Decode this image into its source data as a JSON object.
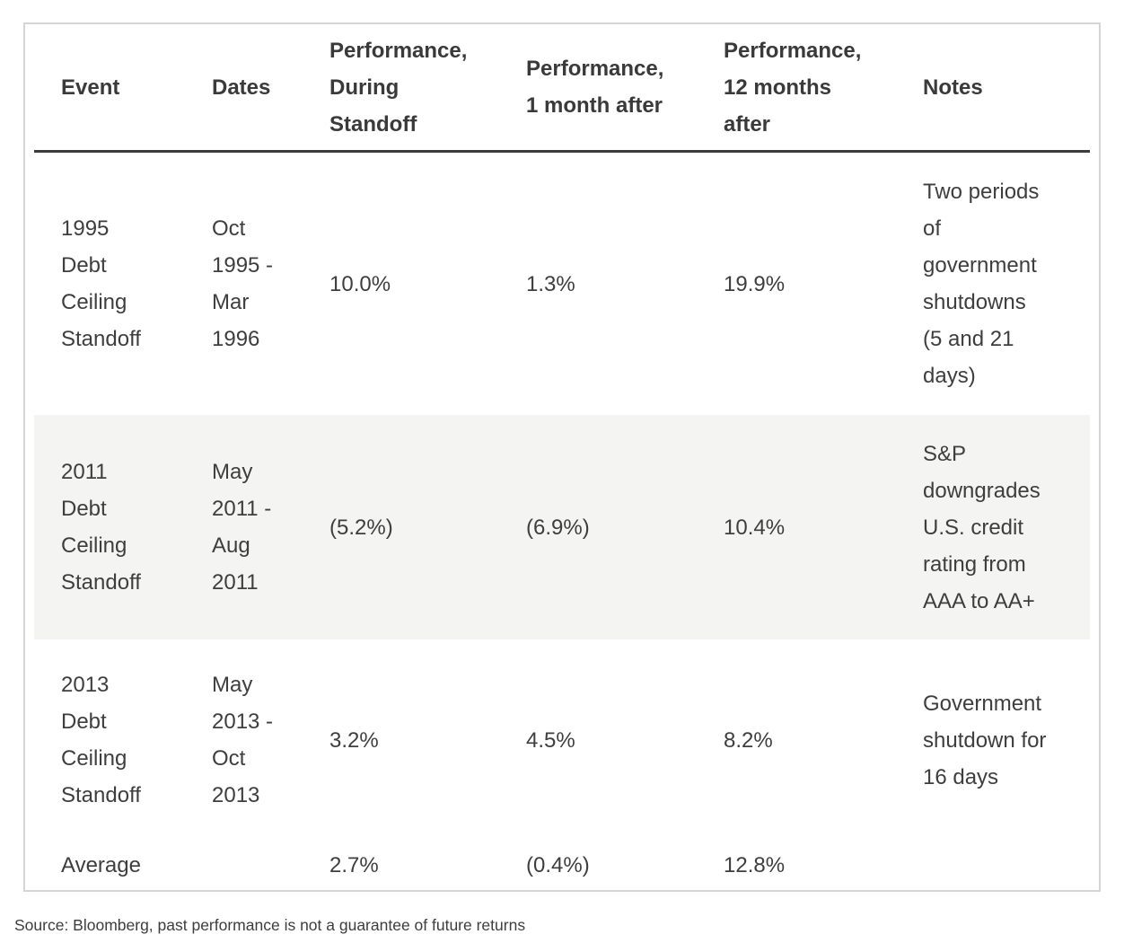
{
  "chart_data": {
    "type": "table",
    "title": "",
    "columns": [
      "Event",
      "Dates",
      "Performance, During Standoff",
      "Performance, 1 month after",
      "Performance, 12 months after",
      "Notes"
    ],
    "rows": [
      [
        "1995 Debt Ceiling Standoff",
        "Oct 1995 - Mar 1996",
        "10.0%",
        "1.3%",
        "19.9%",
        "Two periods of government shutdowns (5 and 21 days)"
      ],
      [
        "2011 Debt Ceiling Standoff",
        "May 2011 - Aug 2011",
        "(5.2%)",
        "(6.9%)",
        "10.4%",
        "S&P downgrades U.S. credit rating from AAA to AA+"
      ],
      [
        "2013 Debt Ceiling Standoff",
        "May 2013 - Oct 2013",
        "3.2%",
        "4.5%",
        "8.2%",
        "Government shutdown for 16 days"
      ],
      [
        "Average",
        "",
        "2.7%",
        "(0.4%)",
        "12.8%",
        ""
      ]
    ],
    "source": "Source: Bloomberg, past performance is not a guarantee of future returns"
  },
  "table": {
    "columns": [
      {
        "label": "Event"
      },
      {
        "label": "Dates"
      },
      {
        "label": "Performance,\nDuring\nStandoff"
      },
      {
        "label": "Performance,\n1 month after"
      },
      {
        "label": "Performance,\n12 months\nafter"
      },
      {
        "label": "Notes"
      }
    ],
    "rows": [
      {
        "event": "1995\nDebt\nCeiling\nStandoff",
        "dates": "Oct\n1995 -\nMar\n1996",
        "perf_during": "10.0%",
        "perf_1mo": "1.3%",
        "perf_12mo": "19.9%",
        "notes": "Two periods\nof\ngovernment\nshutdowns\n(5 and 21\ndays)"
      },
      {
        "event": "2011\nDebt\nCeiling\nStandoff",
        "dates": "May\n2011 -\nAug\n2011",
        "perf_during": "(5.2%)",
        "perf_1mo": "(6.9%)",
        "perf_12mo": "10.4%",
        "notes": "S&P\ndowngrades\nU.S. credit\nrating from\nAAA to AA+"
      },
      {
        "event": "2013\nDebt\nCeiling\nStandoff",
        "dates": "May\n2013 -\nOct\n2013",
        "perf_during": "3.2%",
        "perf_1mo": "4.5%",
        "perf_12mo": "8.2%",
        "notes": "Government\nshutdown for\n16 days"
      },
      {
        "event": "Average",
        "dates": "",
        "perf_during": "2.7%",
        "perf_1mo": "(0.4%)",
        "perf_12mo": "12.8%",
        "notes": ""
      }
    ]
  },
  "footer": {
    "source": "Source: Bloomberg, past performance is not a guarantee of future returns"
  },
  "colors": {
    "text": "#3e3e3e",
    "card_border": "#d5d5d5",
    "header_rule": "#3b3b3b",
    "zebra_row_bg": "#f4f4f3"
  }
}
